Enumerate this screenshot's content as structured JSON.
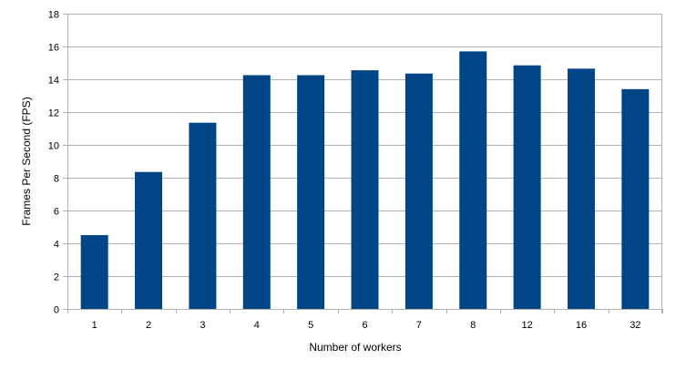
{
  "chart_data": {
    "type": "bar",
    "title": "",
    "xlabel": "Number of workers",
    "ylabel": "Frames Per Second (FPS)",
    "categories": [
      "1",
      "2",
      "3",
      "4",
      "5",
      "6",
      "7",
      "8",
      "12",
      "16",
      "32"
    ],
    "values": [
      4.5,
      8.35,
      11.35,
      14.25,
      14.25,
      14.55,
      14.35,
      15.7,
      14.85,
      14.65,
      13.4
    ],
    "ylim": [
      0,
      18
    ],
    "yticks": [
      0,
      2,
      4,
      6,
      8,
      10,
      12,
      14,
      16,
      18
    ],
    "grid": "horizontal",
    "legend": "none",
    "colors": {
      "bar": "#004586",
      "grid": "#b3b3b3",
      "axis": "#b3b3b3"
    }
  }
}
